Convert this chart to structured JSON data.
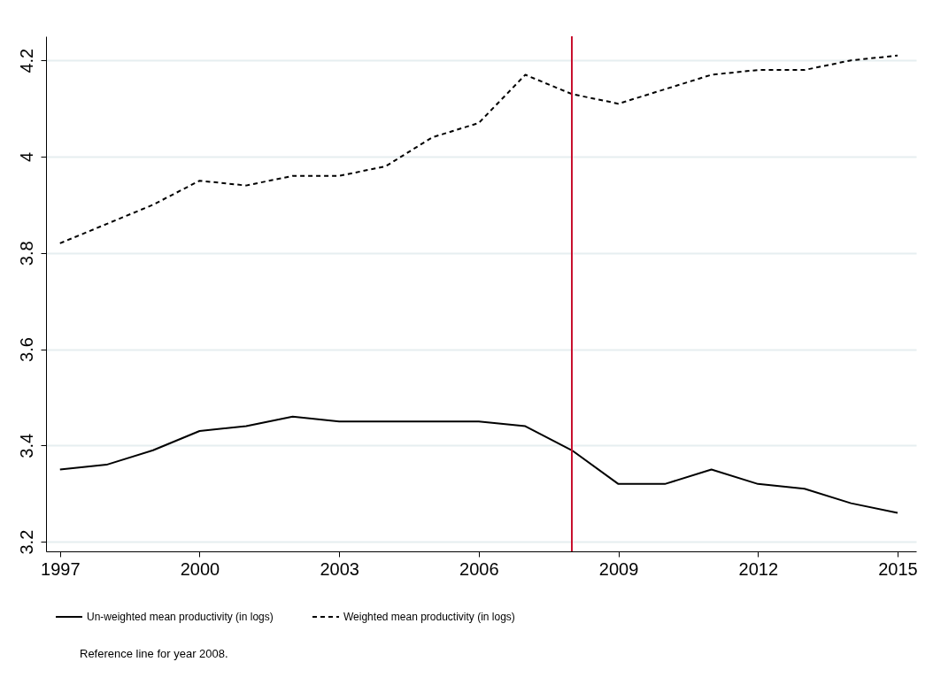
{
  "chart_data": {
    "type": "line",
    "x": [
      1997,
      1998,
      1999,
      2000,
      2001,
      2002,
      2003,
      2004,
      2005,
      2006,
      2007,
      2008,
      2009,
      2010,
      2011,
      2012,
      2013,
      2014,
      2015
    ],
    "series": [
      {
        "name": "Un-weighted mean productivity (in logs)",
        "color": "#000000",
        "line_style": "solid",
        "values": [
          3.35,
          3.36,
          3.39,
          3.43,
          3.44,
          3.46,
          3.45,
          3.45,
          3.45,
          3.45,
          3.44,
          3.39,
          3.32,
          3.32,
          3.35,
          3.32,
          3.31,
          3.28,
          3.26
        ]
      },
      {
        "name": "Weighted mean productivity (in logs)",
        "color": "#000000",
        "line_style": "dashed",
        "values": [
          3.82,
          3.86,
          3.9,
          3.95,
          3.94,
          3.96,
          3.96,
          3.98,
          4.04,
          4.07,
          4.17,
          4.13,
          4.11,
          4.14,
          4.17,
          4.18,
          4.18,
          4.2,
          4.21
        ]
      }
    ],
    "xlim": [
      1996.7,
      2015.4
    ],
    "xticks": [
      1997,
      2000,
      2003,
      2006,
      2009,
      2012,
      2015
    ],
    "ylim": [
      3.18,
      4.25
    ],
    "yticks": [
      3.2,
      3.4,
      3.6,
      3.8,
      4,
      4.2
    ],
    "grid": "y",
    "legend": "bottom",
    "marker": "none",
    "ref_lines": [
      {
        "axis": "x",
        "value": 2008,
        "color": "#c8102e"
      }
    ],
    "annotations": [
      "Reference line for year 2008."
    ]
  }
}
